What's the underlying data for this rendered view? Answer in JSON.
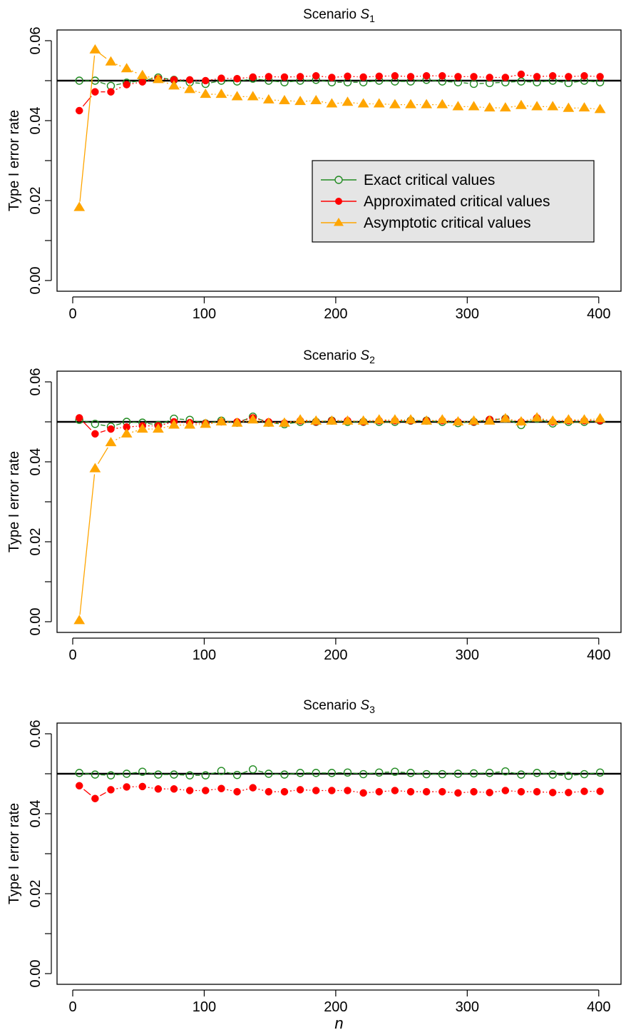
{
  "chart_data": [
    {
      "type": "line",
      "title": "Scenario S",
      "title_subscript": "1",
      "ylabel": "Type I error rate",
      "xlabel": "",
      "xlim": [
        0,
        405
      ],
      "ylim": [
        0,
        0.06
      ],
      "xticks": [
        0,
        100,
        200,
        300,
        400
      ],
      "yticks": [
        0.0,
        0.02,
        0.04,
        0.06
      ],
      "xtick_labels": [
        "0",
        "100",
        "200",
        "300",
        "400"
      ],
      "ytick_labels": [
        "0.00",
        "0.02",
        "0.04",
        "0.06"
      ],
      "reference_line": 0.05,
      "legend": {
        "placement": "center-right",
        "entries": [
          "Exact critical values",
          "Approximated critical values",
          "Asymptotic critical values"
        ]
      },
      "x": [
        5,
        17,
        29,
        41,
        53,
        65,
        77,
        89,
        101,
        113,
        125,
        137,
        149,
        161,
        173,
        185,
        197,
        209,
        221,
        233,
        245,
        257,
        269,
        281,
        293,
        305,
        317,
        329,
        341,
        353,
        365,
        377,
        389,
        401
      ],
      "series": [
        {
          "name": "Exact critical values",
          "marker": "open-circle",
          "color": "#228B22",
          "values": [
            0.05,
            0.05,
            0.0487,
            0.0495,
            0.05,
            0.0508,
            0.0502,
            0.0496,
            0.0492,
            0.05,
            0.0498,
            0.0505,
            0.05,
            0.0496,
            0.05,
            0.0502,
            0.0496,
            0.0496,
            0.0496,
            0.05,
            0.0498,
            0.0498,
            0.0502,
            0.0498,
            0.0496,
            0.0492,
            0.0494,
            0.0496,
            0.0498,
            0.0496,
            0.05,
            0.0494,
            0.05,
            0.0496
          ]
        },
        {
          "name": "Approximated critical values",
          "marker": "filled-circle",
          "color": "#FF0000",
          "values": [
            0.0425,
            0.0472,
            0.0472,
            0.049,
            0.0497,
            0.0505,
            0.0502,
            0.0502,
            0.05,
            0.0506,
            0.0505,
            0.0509,
            0.051,
            0.0509,
            0.051,
            0.0512,
            0.0508,
            0.0511,
            0.0509,
            0.0511,
            0.0512,
            0.051,
            0.0512,
            0.0512,
            0.051,
            0.051,
            0.0508,
            0.0508,
            0.0516,
            0.051,
            0.0512,
            0.051,
            0.0512,
            0.051
          ]
        },
        {
          "name": "Asymptotic critical values",
          "marker": "filled-triangle",
          "color": "#FFA500",
          "values": [
            0.0183,
            0.0577,
            0.0547,
            0.053,
            0.0513,
            0.0503,
            0.0487,
            0.0478,
            0.0466,
            0.0466,
            0.046,
            0.046,
            0.0452,
            0.045,
            0.0448,
            0.045,
            0.0442,
            0.0446,
            0.0442,
            0.0442,
            0.044,
            0.044,
            0.044,
            0.044,
            0.0435,
            0.0435,
            0.0432,
            0.0432,
            0.0438,
            0.0435,
            0.0435,
            0.0431,
            0.0432,
            0.0428
          ]
        }
      ]
    },
    {
      "type": "line",
      "title": "Scenario S",
      "title_subscript": "2",
      "ylabel": "Type I error rate",
      "xlabel": "",
      "xlim": [
        0,
        405
      ],
      "ylim": [
        0,
        0.06
      ],
      "xticks": [
        0,
        100,
        200,
        300,
        400
      ],
      "yticks": [
        0.0,
        0.02,
        0.04,
        0.06
      ],
      "xtick_labels": [
        "0",
        "100",
        "200",
        "300",
        "400"
      ],
      "ytick_labels": [
        "0.00",
        "0.02",
        "0.04",
        "0.06"
      ],
      "reference_line": 0.05,
      "x": [
        5,
        17,
        29,
        41,
        53,
        65,
        77,
        89,
        101,
        113,
        125,
        137,
        149,
        161,
        173,
        185,
        197,
        209,
        221,
        233,
        245,
        257,
        269,
        281,
        293,
        305,
        317,
        329,
        341,
        353,
        365,
        377,
        389,
        401
      ],
      "series": [
        {
          "name": "Exact critical values",
          "marker": "open-circle",
          "color": "#228B22",
          "values": [
            0.0505,
            0.0495,
            0.0488,
            0.05,
            0.0498,
            0.0492,
            0.0508,
            0.0505,
            0.0496,
            0.0503,
            0.0498,
            0.0513,
            0.0498,
            0.0494,
            0.05,
            0.05,
            0.0503,
            0.05,
            0.05,
            0.05,
            0.05,
            0.0503,
            0.0503,
            0.05,
            0.0497,
            0.05,
            0.0505,
            0.0508,
            0.0492,
            0.0508,
            0.0496,
            0.05,
            0.05,
            0.0503
          ]
        },
        {
          "name": "Approximated critical values",
          "marker": "filled-circle",
          "color": "#FF0000",
          "values": [
            0.051,
            0.047,
            0.0482,
            0.0487,
            0.049,
            0.049,
            0.05,
            0.0498,
            0.0496,
            0.05,
            0.05,
            0.051,
            0.05,
            0.0497,
            0.0503,
            0.05,
            0.0503,
            0.0503,
            0.05,
            0.0503,
            0.0503,
            0.0503,
            0.0503,
            0.0503,
            0.05,
            0.05,
            0.0506,
            0.0508,
            0.05,
            0.051,
            0.05,
            0.0503,
            0.0503,
            0.0503
          ]
        },
        {
          "name": "Asymptotic critical values",
          "marker": "filled-triangle",
          "color": "#FFA500",
          "values": [
            0.0003,
            0.0383,
            0.0448,
            0.047,
            0.0482,
            0.0482,
            0.0492,
            0.0492,
            0.0494,
            0.05,
            0.0497,
            0.0505,
            0.0497,
            0.0497,
            0.0505,
            0.0502,
            0.0502,
            0.0502,
            0.0502,
            0.0505,
            0.0505,
            0.0505,
            0.0502,
            0.0505,
            0.05,
            0.0502,
            0.0502,
            0.0508,
            0.05,
            0.051,
            0.0502,
            0.0505,
            0.0505,
            0.0508
          ]
        }
      ]
    },
    {
      "type": "line",
      "title": "Scenario S",
      "title_subscript": "3",
      "ylabel": "Type I error rate",
      "xlabel": "n",
      "xlim": [
        0,
        405
      ],
      "ylim": [
        0,
        0.06
      ],
      "xticks": [
        0,
        100,
        200,
        300,
        400
      ],
      "yticks": [
        0.0,
        0.02,
        0.04,
        0.06
      ],
      "xtick_labels": [
        "0",
        "100",
        "200",
        "300",
        "400"
      ],
      "ytick_labels": [
        "0.00",
        "0.02",
        "0.04",
        "0.06"
      ],
      "reference_line": 0.05,
      "x": [
        5,
        17,
        29,
        41,
        53,
        65,
        77,
        89,
        101,
        113,
        125,
        137,
        149,
        161,
        173,
        185,
        197,
        209,
        221,
        233,
        245,
        257,
        269,
        281,
        293,
        305,
        317,
        329,
        341,
        353,
        365,
        377,
        389,
        401
      ],
      "series": [
        {
          "name": "Exact critical values",
          "marker": "open-circle",
          "color": "#228B22",
          "values": [
            0.0502,
            0.0498,
            0.0496,
            0.05,
            0.0505,
            0.0498,
            0.0498,
            0.0496,
            0.0496,
            0.0507,
            0.0497,
            0.0511,
            0.05,
            0.0498,
            0.0502,
            0.0502,
            0.0502,
            0.0503,
            0.0499,
            0.0503,
            0.0505,
            0.0502,
            0.0499,
            0.0499,
            0.05,
            0.0501,
            0.0502,
            0.0506,
            0.0498,
            0.0502,
            0.0498,
            0.0495,
            0.0499,
            0.0503
          ]
        },
        {
          "name": "Approximated critical values",
          "marker": "filled-circle",
          "color": "#FF0000",
          "values": [
            0.047,
            0.0438,
            0.046,
            0.0467,
            0.0468,
            0.0462,
            0.0462,
            0.0458,
            0.0458,
            0.0463,
            0.0455,
            0.0465,
            0.0455,
            0.0455,
            0.046,
            0.0458,
            0.0458,
            0.0458,
            0.0452,
            0.0455,
            0.0458,
            0.0455,
            0.0455,
            0.0455,
            0.0452,
            0.0455,
            0.0453,
            0.0458,
            0.0455,
            0.0455,
            0.0453,
            0.0453,
            0.0456,
            0.0456
          ]
        }
      ]
    }
  ]
}
